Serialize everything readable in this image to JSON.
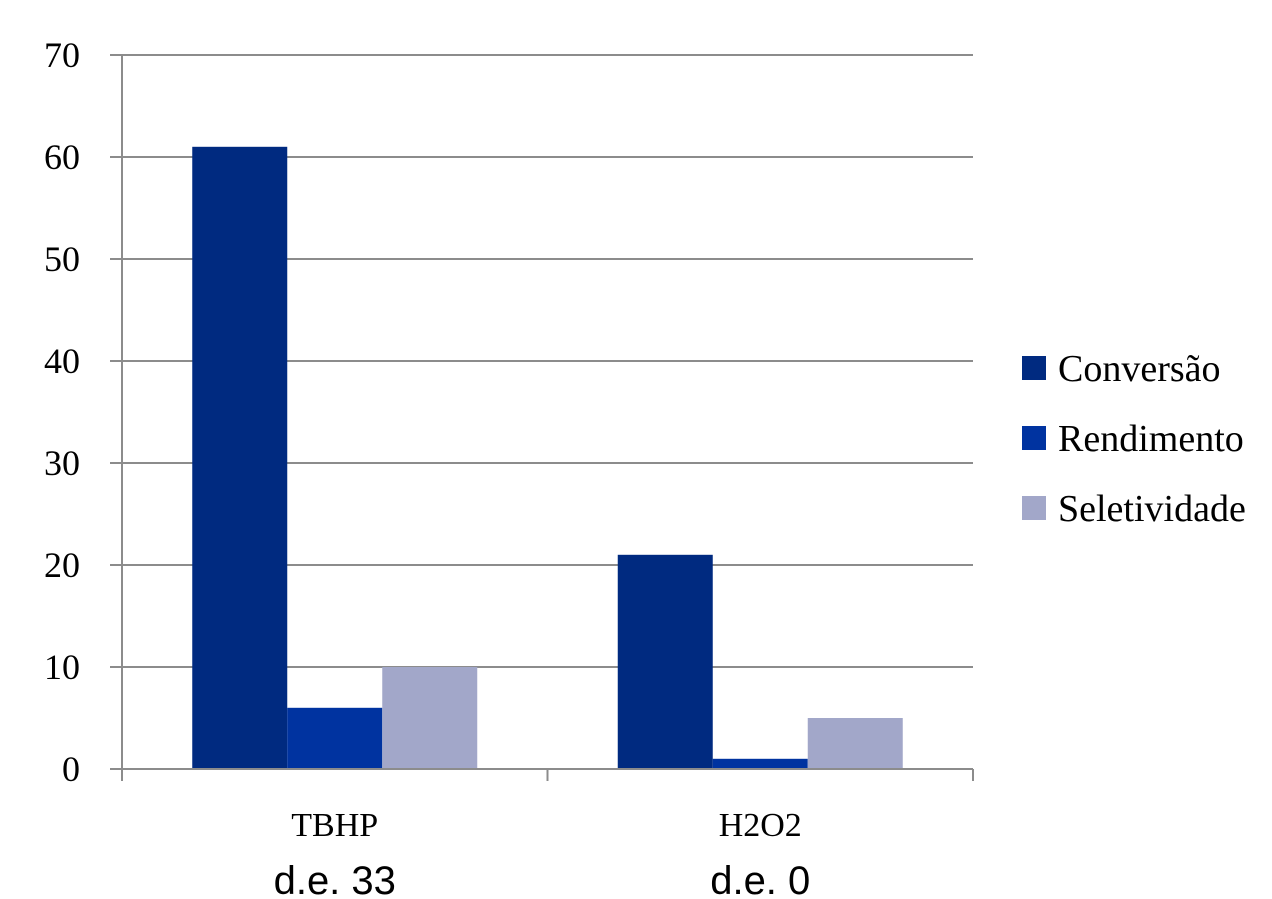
{
  "chart_data": {
    "type": "bar",
    "title": "",
    "xlabel": "",
    "ylabel": "",
    "ylim": [
      0,
      70
    ],
    "yticks": [
      0,
      10,
      20,
      30,
      40,
      50,
      60,
      70
    ],
    "grid": true,
    "legend_position": "right",
    "categories": [
      "TBHP",
      "H2O2"
    ],
    "category_sublabels": [
      "d.e. 33",
      "d.e. 0"
    ],
    "series": [
      {
        "name": "Conversão",
        "color": "#002A80",
        "values": [
          61,
          21
        ]
      },
      {
        "name": "Rendimento",
        "color": "#0033A0",
        "values": [
          6,
          1
        ]
      },
      {
        "name": "Seletividade",
        "color": "#A2A7C9",
        "values": [
          10,
          5
        ]
      }
    ]
  }
}
